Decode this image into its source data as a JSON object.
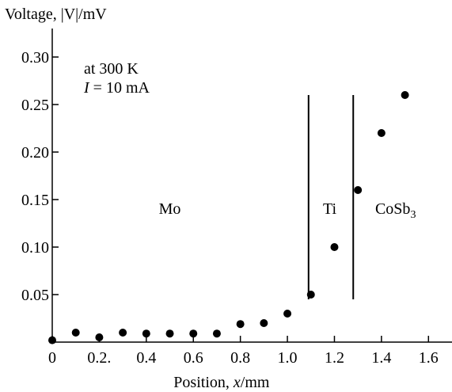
{
  "chart_data": {
    "type": "scatter",
    "ylabel": "Voltage, |V|/mV",
    "xlabel_prefix": "Position, ",
    "xlabel_var": "x",
    "xlabel_suffix": "/mm",
    "xlim": [
      0,
      1.7
    ],
    "ylim": [
      0,
      0.33
    ],
    "x_ticks": [
      0,
      0.2,
      0.4,
      0.6,
      0.8,
      1.0,
      1.2,
      1.4,
      1.6
    ],
    "x_tick_labels": [
      "0",
      "0.2.",
      "0.4",
      "0.6",
      "0.8",
      "1.0",
      "1.2",
      "1.4",
      "1.6"
    ],
    "y_ticks": [
      0.05,
      0.1,
      0.15,
      0.2,
      0.25,
      0.3
    ],
    "y_tick_labels": [
      "0.05",
      "0.10",
      "0.15",
      "0.20",
      "0.25",
      "0.30"
    ],
    "x": [
      0,
      0.1,
      0.2,
      0.3,
      0.4,
      0.5,
      0.6,
      0.7,
      0.8,
      0.9,
      1.0,
      1.1,
      1.2,
      1.3,
      1.4,
      1.5
    ],
    "y": [
      0.002,
      0.01,
      0.005,
      0.01,
      0.009,
      0.009,
      0.009,
      0.009,
      0.019,
      0.02,
      0.03,
      0.05,
      0.1,
      0.16,
      0.22,
      0.26
    ],
    "boundaries": [
      1.09,
      1.28
    ],
    "boundary_ymax": 0.26,
    "regions": {
      "mo": {
        "label": "Mo",
        "x": 0.5
      },
      "ti": {
        "label": "Ti",
        "x": 1.18
      },
      "cosb": {
        "label_main": "CoSb",
        "label_sub": "3",
        "x": 1.46
      },
      "label_y": 0.135
    },
    "annotation": {
      "line1": "at 300 K",
      "line2_var": "I",
      "line2_rest": " = 10 mA"
    },
    "grid": false,
    "legend": "none",
    "marker_color": "#000000",
    "axis_color": "#000000"
  }
}
